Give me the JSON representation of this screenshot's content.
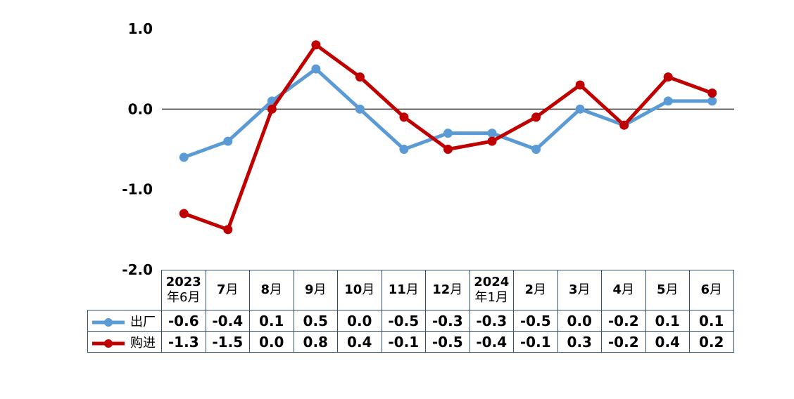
{
  "chart_data": {
    "type": "line",
    "categories": [
      {
        "num": "2023",
        "unit": "年6月"
      },
      {
        "num": "7",
        "unit": "月"
      },
      {
        "num": "8",
        "unit": "月"
      },
      {
        "num": "9",
        "unit": "月"
      },
      {
        "num": "10",
        "unit": "月"
      },
      {
        "num": "11",
        "unit": "月"
      },
      {
        "num": "12",
        "unit": "月"
      },
      {
        "num": "2024",
        "unit": "年1月"
      },
      {
        "num": "2",
        "unit": "月"
      },
      {
        "num": "3",
        "unit": "月"
      },
      {
        "num": "4",
        "unit": "月"
      },
      {
        "num": "5",
        "unit": "月"
      },
      {
        "num": "6",
        "unit": "月"
      }
    ],
    "series": [
      {
        "name": "出厂",
        "color": "#5b9bd5",
        "values": [
          -0.6,
          -0.4,
          0.1,
          0.5,
          0.0,
          -0.5,
          -0.3,
          -0.3,
          -0.5,
          0.0,
          -0.2,
          0.1,
          0.1
        ],
        "labels": [
          "-0.6",
          "-0.4",
          "0.1",
          "0.5",
          "0.0",
          "-0.5",
          "-0.3",
          "-0.3",
          "-0.5",
          "0.0",
          "-0.2",
          "0.1",
          "0.1"
        ]
      },
      {
        "name": "购进",
        "color": "#c00000",
        "values": [
          -1.3,
          -1.5,
          0.0,
          0.8,
          0.4,
          -0.1,
          -0.5,
          -0.4,
          -0.1,
          0.3,
          -0.2,
          0.4,
          0.2
        ],
        "labels": [
          "-1.3",
          "-1.5",
          "0.0",
          "0.8",
          "0.4",
          "-0.1",
          "-0.5",
          "-0.4",
          "-0.1",
          "0.3",
          "-0.2",
          "0.4",
          "0.2"
        ]
      }
    ],
    "yticks": [
      "1.0",
      "0.0",
      "-1.0",
      "-2.0"
    ],
    "ylim": [
      -2.0,
      1.0
    ],
    "grid": false,
    "legend": "data-table"
  }
}
